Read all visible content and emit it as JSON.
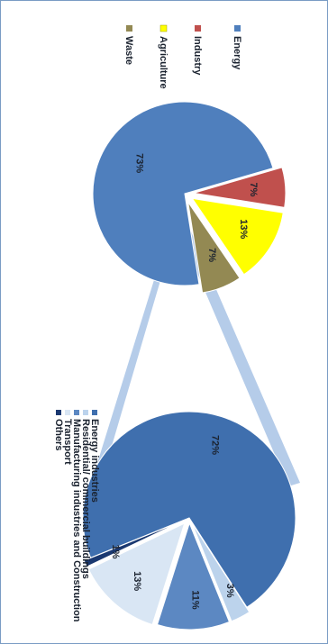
{
  "chart_data": [
    {
      "type": "pie",
      "series": [
        {
          "name": "Energy",
          "value": 73,
          "label": "73%",
          "color": "#4f7fbd"
        },
        {
          "name": "Industry",
          "value": 7,
          "label": "7%",
          "color": "#c0504d"
        },
        {
          "name": "Agriculture",
          "value": 13,
          "label": "13%",
          "color": "#ffff00"
        },
        {
          "name": "Waste",
          "value": 7,
          "label": "7%",
          "color": "#938953"
        }
      ],
      "legend": "top",
      "legend_entries": [
        "Energy",
        "Industry",
        "Agriculture",
        "Waste"
      ]
    },
    {
      "type": "pie",
      "breakdown_of": "Energy",
      "series": [
        {
          "name": "Energy industries",
          "value": 72,
          "label": "72%",
          "color": "#3f6fae"
        },
        {
          "name": "Residential/ commercial buildings",
          "value": 3,
          "label": "3%",
          "color": "#bcd3ec"
        },
        {
          "name": "Manufacturing industries and Construction",
          "value": 11,
          "label": "11%",
          "color": "#5c88c2"
        },
        {
          "name": "Transport",
          "value": 13,
          "label": "13%",
          "color": "#d9e6f4"
        },
        {
          "name": "Others",
          "value": 1,
          "label": "1%",
          "color": "#1a3870"
        }
      ],
      "legend": "right",
      "legend_entries": [
        "Energy industries",
        "Residential/ commercial buildings",
        "Manufacturing industries and Construction",
        "Transport",
        "Others"
      ]
    }
  ]
}
